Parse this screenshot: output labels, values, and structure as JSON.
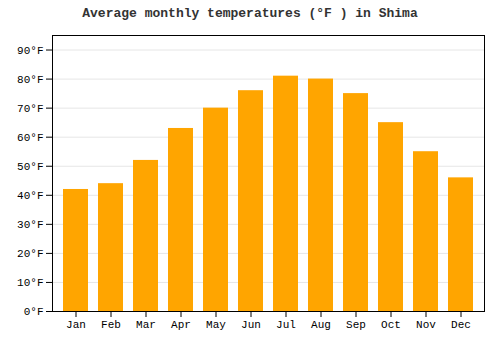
{
  "chart_data": {
    "type": "bar",
    "title": "Average monthly temperatures (°F ) in Shima",
    "categories": [
      "Jan",
      "Feb",
      "Mar",
      "Apr",
      "May",
      "Jun",
      "Jul",
      "Aug",
      "Sep",
      "Oct",
      "Nov",
      "Dec"
    ],
    "values": [
      42,
      44,
      52,
      63,
      70,
      76,
      81,
      80,
      75,
      65,
      55,
      46
    ],
    "color": "#FFA500",
    "ylim": [
      0,
      95
    ],
    "yticks": [
      {
        "value": 0,
        "label": "0°F"
      },
      {
        "value": 10,
        "label": "10°F"
      },
      {
        "value": 20,
        "label": "20°F"
      },
      {
        "value": 30,
        "label": "30°F"
      },
      {
        "value": 40,
        "label": "40°F"
      },
      {
        "value": 50,
        "label": "50°F"
      },
      {
        "value": 60,
        "label": "60°F"
      },
      {
        "value": 70,
        "label": "70°F"
      },
      {
        "value": 80,
        "label": "80°F"
      },
      {
        "value": 90,
        "label": "90°F"
      }
    ],
    "grid": true
  }
}
